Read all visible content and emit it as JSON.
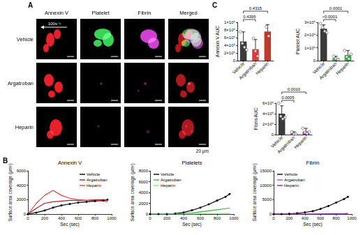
{
  "panel_labels": [
    "A",
    "B",
    "C"
  ],
  "image_panel": {
    "columns": [
      "Annexin V",
      "Platelet",
      "Fibrin",
      "Merged"
    ],
    "rows": [
      "Vehicle",
      "Argatroban",
      "Heparin"
    ],
    "shear_rate": "100s⁻¹",
    "scale_bar": "20 µm"
  },
  "chart_data": [
    {
      "type": "line",
      "title": "Annexin V",
      "x_label": "Sec (sec)",
      "y_label": "Surface area coverage (µm²)",
      "x": [
        0,
        100,
        200,
        300,
        400,
        500,
        600,
        700,
        800,
        900,
        950
      ],
      "xlim": [
        0,
        1000
      ],
      "xticks": [
        0,
        200,
        400,
        600,
        800,
        1000
      ],
      "ylim": [
        0,
        6000
      ],
      "yticks": [
        0,
        2000,
        4000,
        6000
      ],
      "grid": false,
      "legend": "upper right",
      "series": [
        {
          "name": "Vehicle",
          "color": "#000000",
          "marker": "circle",
          "values": [
            0,
            200,
            500,
            900,
            1200,
            1400,
            1600,
            1700,
            1800,
            1900,
            2000
          ]
        },
        {
          "name": "Argatroban",
          "color": "#b02020",
          "marker": "none",
          "values": [
            0,
            800,
            1500,
            1700,
            1800,
            1900,
            1900,
            1900,
            2000,
            2000,
            1900
          ]
        },
        {
          "name": "Heparin",
          "color": "#e84040",
          "marker": "none",
          "values": [
            0,
            1500,
            2600,
            3300,
            2600,
            2200,
            2000,
            1900,
            1900,
            1800,
            1700
          ]
        }
      ]
    },
    {
      "type": "line",
      "title": "Platelets",
      "x_label": "Sec (sec)",
      "y_label": "Surface area coverage (µm²)",
      "x": [
        0,
        100,
        200,
        300,
        400,
        500,
        600,
        700,
        800,
        900,
        950
      ],
      "xlim": [
        0,
        1000
      ],
      "xticks": [
        0,
        200,
        400,
        600,
        800,
        1000
      ],
      "ylim": [
        0,
        8000
      ],
      "yticks": [
        0,
        2000,
        4000,
        6000,
        8000
      ],
      "grid": false,
      "legend": "upper left",
      "series": [
        {
          "name": "Vehicle",
          "color": "#000000",
          "marker": "circle",
          "values": [
            0,
            0,
            0,
            100,
            300,
            700,
            1200,
            1800,
            2500,
            3200,
            3700
          ]
        },
        {
          "name": "Argatroban",
          "color": "#3cb043",
          "marker": "none",
          "values": [
            0,
            0,
            0,
            0,
            100,
            200,
            400,
            600,
            800,
            1000,
            1100
          ]
        },
        {
          "name": "Heparin",
          "color": "#8fdc8f",
          "marker": "none",
          "values": [
            0,
            0,
            0,
            0,
            0,
            0,
            50,
            100,
            100,
            150,
            150
          ]
        }
      ]
    },
    {
      "type": "line",
      "title": "Fibrin",
      "x_label": "Sec (sec)",
      "y_label": "Surface area coverage (µm²)",
      "x": [
        0,
        100,
        200,
        300,
        400,
        500,
        600,
        700,
        800,
        900,
        950
      ],
      "xlim": [
        0,
        1000
      ],
      "xticks": [
        0,
        200,
        400,
        600,
        800,
        1000
      ],
      "ylim": [
        0,
        15000
      ],
      "yticks": [
        0,
        5000,
        10000,
        15000
      ],
      "grid": false,
      "legend": "upper left",
      "series": [
        {
          "name": "Vehicle",
          "color": "#000000",
          "marker": "circle",
          "values": [
            0,
            0,
            100,
            300,
            600,
            1000,
            1800,
            2800,
            4000,
            5200,
            6000
          ]
        },
        {
          "name": "Argatroban",
          "color": "#c040c0",
          "marker": "none",
          "values": [
            0,
            0,
            0,
            0,
            0,
            0,
            0,
            50,
            50,
            50,
            50
          ]
        },
        {
          "name": "Heparin",
          "color": "#7a2a9a",
          "marker": "none",
          "values": [
            0,
            0,
            0,
            0,
            0,
            0,
            50,
            100,
            100,
            150,
            200
          ]
        }
      ]
    },
    {
      "type": "bar",
      "y_label": "Annexin V AUC",
      "categories": [
        "Vehicle",
        "Argatroban",
        "Heparin"
      ],
      "values": [
        500000,
        300000,
        760000
      ],
      "error": [
        250000,
        250000,
        180000
      ],
      "points": [
        [
          750000,
          450000,
          350000,
          280000
        ],
        [
          580000,
          250000,
          120000
        ],
        [
          880000,
          640000
        ]
      ],
      "colors": [
        "#3a3a3a",
        "#e03a3a",
        "#c0392b"
      ],
      "ylim": [
        0,
        1000000
      ],
      "yticks": [
        0,
        {
          "value": 200000,
          "label": "2×10⁵"
        },
        {
          "value": 400000,
          "label": "4×10⁵"
        },
        {
          "value": 600000,
          "label": "6×10⁵"
        },
        {
          "value": 800000,
          "label": "8×10⁵"
        },
        {
          "value": 1000000,
          "label": "1×10⁶"
        }
      ],
      "grid": false,
      "comparisons": [
        {
          "groups": [
            "Vehicle",
            "Argatroban"
          ],
          "p": "0.4395"
        },
        {
          "groups": [
            "Vehicle",
            "Heparin"
          ],
          "p": "0.4315"
        }
      ]
    },
    {
      "type": "bar",
      "y_label": "Platelet AUC",
      "categories": [
        "Vehicle",
        "Argatroban",
        "Heparin"
      ],
      "values": [
        2500000,
        200000,
        450000
      ],
      "error": [
        300000,
        150000,
        350000
      ],
      "points": [
        [
          2900000,
          2600000,
          2300000,
          2200000
        ],
        [
          350000,
          150000,
          100000
        ],
        [
          800000,
          300000,
          150000,
          500000
        ]
      ],
      "colors": [
        "#3a3a3a",
        "#3cb043",
        "#3cb043"
      ],
      "ylim": [
        0,
        3000000
      ],
      "yticks": [
        0,
        {
          "value": 1000000,
          "label": "1×10⁶"
        },
        {
          "value": 2000000,
          "label": "2×10⁶"
        },
        {
          "value": 3000000,
          "label": "3×10⁶"
        }
      ],
      "grid": false,
      "comparisons": [
        {
          "groups": [
            "Vehicle",
            "Argatroban"
          ],
          "p": "<0.0001"
        },
        {
          "groups": [
            "Vehicle",
            "Heparin"
          ],
          "p": "0.0001"
        }
      ]
    },
    {
      "type": "bar",
      "y_label": "Fibrin AUC",
      "categories": [
        "Vehicle",
        "Argatroban",
        "Heparin"
      ],
      "values": [
        4000000,
        250000,
        600000
      ],
      "error": [
        1500000,
        300000,
        600000
      ],
      "points": [
        [
          6000000,
          3500000,
          3000000,
          3300000
        ],
        [
          500000,
          100000,
          100000
        ],
        [
          1200000,
          400000,
          200000,
          500000
        ]
      ],
      "colors": [
        "#3a3a3a",
        "#a040c0",
        "#a040c0"
      ],
      "ylim": [
        0,
        6000000
      ],
      "yticks": [
        0,
        {
          "value": 2000000,
          "label": "2×10⁶"
        },
        {
          "value": 4000000,
          "label": "4×10⁶"
        },
        {
          "value": 6000000,
          "label": "6×10⁶"
        }
      ],
      "grid": false,
      "comparisons": [
        {
          "groups": [
            "Vehicle",
            "Argatroban"
          ],
          "p": "0.0005"
        },
        {
          "groups": [
            "Vehicle",
            "Heparin"
          ],
          "p": "0.0010"
        }
      ]
    }
  ]
}
